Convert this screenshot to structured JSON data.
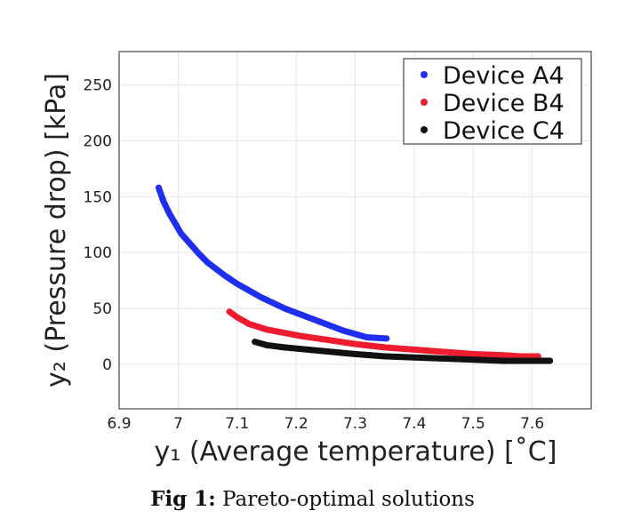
{
  "chart_data": {
    "type": "scatter",
    "xlim": [
      6.9,
      7.7
    ],
    "ylim": [
      -40,
      280
    ],
    "xticks": [
      "6.9",
      "7",
      "7.1",
      "7.2",
      "7.3",
      "7.4",
      "7.5",
      "7.6"
    ],
    "yticks": [
      "0",
      "50",
      "100",
      "150",
      "200",
      "250"
    ],
    "xlabel": "y₁ (Average temperature) [˚C]",
    "ylabel": "y₂ (Pressure drop) [kPa]",
    "grid": true,
    "legend_position": "top-right",
    "series": [
      {
        "name": "Device A4",
        "color": "#1f2ff0",
        "points": [
          [
            6.967,
            158
          ],
          [
            6.975,
            146
          ],
          [
            6.985,
            135
          ],
          [
            6.995,
            126
          ],
          [
            7.005,
            117
          ],
          [
            7.02,
            108
          ],
          [
            7.035,
            99
          ],
          [
            7.05,
            91
          ],
          [
            7.065,
            85
          ],
          [
            7.08,
            79
          ],
          [
            7.1,
            72
          ],
          [
            7.12,
            66
          ],
          [
            7.14,
            60
          ],
          [
            7.16,
            55
          ],
          [
            7.18,
            50
          ],
          [
            7.2,
            46
          ],
          [
            7.22,
            42
          ],
          [
            7.24,
            38
          ],
          [
            7.26,
            34
          ],
          [
            7.28,
            30
          ],
          [
            7.3,
            27
          ],
          [
            7.32,
            24
          ],
          [
            7.353,
            23
          ]
        ]
      },
      {
        "name": "Device B4",
        "color": "#ee1c2e",
        "points": [
          [
            7.087,
            47
          ],
          [
            7.1,
            42
          ],
          [
            7.12,
            36
          ],
          [
            7.15,
            31
          ],
          [
            7.18,
            28
          ],
          [
            7.21,
            25
          ],
          [
            7.25,
            22
          ],
          [
            7.3,
            18
          ],
          [
            7.35,
            15
          ],
          [
            7.4,
            13
          ],
          [
            7.45,
            11
          ],
          [
            7.5,
            9
          ],
          [
            7.55,
            8
          ],
          [
            7.58,
            7
          ],
          [
            7.61,
            7
          ]
        ]
      },
      {
        "name": "Device C4",
        "color": "#111111",
        "points": [
          [
            7.13,
            20
          ],
          [
            7.15,
            17
          ],
          [
            7.18,
            15
          ],
          [
            7.22,
            13
          ],
          [
            7.26,
            11
          ],
          [
            7.3,
            9
          ],
          [
            7.35,
            7
          ],
          [
            7.4,
            6
          ],
          [
            7.45,
            5
          ],
          [
            7.5,
            4
          ],
          [
            7.55,
            3
          ],
          [
            7.6,
            3
          ],
          [
            7.63,
            3
          ]
        ]
      }
    ]
  },
  "caption": {
    "label": "Fig 1:",
    "text": "Pareto-optimal solutions"
  }
}
